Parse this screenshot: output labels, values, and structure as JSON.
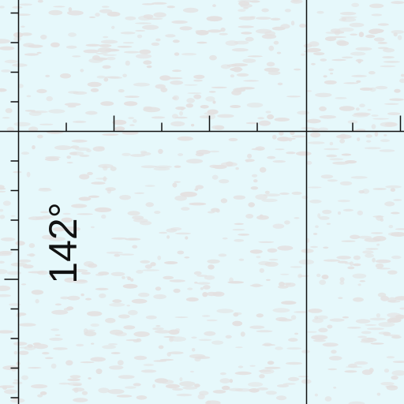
{
  "map": {
    "background_color": "#e6f8fb",
    "ice_color": "#e3e1e1",
    "line_color": "#111111",
    "grid_label": "142°"
  }
}
